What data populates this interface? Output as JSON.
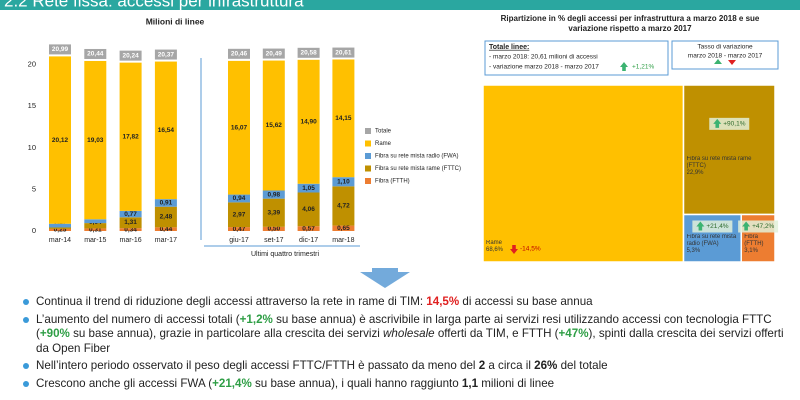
{
  "header": {
    "title": "2.2 Rete fissa: accessi per infrastruttura"
  },
  "chart_data": [
    {
      "type": "stacked_bar",
      "title": "Milioni di linee",
      "group_label": "Ultimi quattro trimestri",
      "categories": [
        "mar-14",
        "mar-15",
        "mar-16",
        "mar-17",
        "giu-17",
        "set-17",
        "dic-17",
        "mar-18"
      ],
      "ylim": [
        0,
        22
      ],
      "yticks": [
        0,
        5,
        10,
        15,
        20
      ],
      "grid": false,
      "series": [
        {
          "name": "Fibra (FTTH)",
          "color": "#ed7d31",
          "values": [
            0.25,
            0.31,
            0.34,
            0.44,
            0.47,
            0.5,
            0.57,
            0.65
          ],
          "value_labels": [
            "0,25",
            "0,31",
            "0,34",
            "0,44",
            "0,47",
            "0,50",
            "0,57",
            "0,65"
          ]
        },
        {
          "name": "Fibra su rete mista rame (FTTC)",
          "color": "#bf9000",
          "values": [
            0.17,
            0.64,
            1.31,
            2.48,
            2.97,
            3.39,
            4.06,
            4.72
          ],
          "value_labels": [
            "0,17",
            "0,64",
            "1,31",
            "2,48",
            "2,97",
            "3,39",
            "4,06",
            "4,72"
          ]
        },
        {
          "name": "Fibra su rete mista radio (FWA)",
          "color": "#5b9bd5",
          "values": [
            0.45,
            0.46,
            0.77,
            0.91,
            0.94,
            0.98,
            1.05,
            1.1
          ],
          "value_labels": [
            "0,45",
            "0,46",
            "0,77",
            "0,91",
            "0,94",
            "0,98",
            "1,05",
            "1,10"
          ]
        },
        {
          "name": "Rame",
          "color": "#ffc000",
          "values": [
            20.12,
            19.03,
            17.82,
            16.54,
            16.07,
            15.62,
            14.9,
            14.15
          ],
          "value_labels": [
            "20,12",
            "19,03",
            "17,82",
            "16,54",
            "16,07",
            "15,62",
            "14,90",
            "14,15"
          ]
        }
      ],
      "totals": {
        "name": "Totale",
        "color": "#a6a6a6",
        "values": [
          20.99,
          20.44,
          20.24,
          20.37,
          20.46,
          20.49,
          20.58,
          20.61
        ],
        "value_labels": [
          "20,99",
          "20,44",
          "20,24",
          "20,37",
          "20,46",
          "20,49",
          "20,58",
          "20,61"
        ]
      },
      "legend_order": [
        4,
        3,
        2,
        1,
        0
      ]
    },
    {
      "type": "treemap",
      "title": "Ripartizione in % degli accessi per infrastruttura a marzo 2018 e sue variazione rispetto a marzo 2017",
      "summary": {
        "title": "Totale linee:",
        "line1": "- marzo 2018: 20,61 milioni di accessi",
        "line2": "- variazione marzo 2018 - marzo 2017",
        "change": 1.21,
        "change_label": "+1,21%"
      },
      "legend_box": {
        "title": "Tasso di variazione",
        "subtitle": "marzo 2018 - marzo 2017"
      },
      "categories": [
        "Rame",
        "Fibra su rete mista rame (FTTC)",
        "Fibra su rete mista radio (FWA)",
        "Fibra (FTTH)"
      ],
      "values": [
        68.6,
        22.9,
        5.3,
        3.1
      ],
      "value_labels": [
        "68,6%",
        "22,9%",
        "5,3%",
        "3,1%"
      ],
      "changes": [
        -14.5,
        90.1,
        21.4,
        47.2
      ],
      "change_labels": [
        "-14,5%",
        "+90,1%",
        "+21,4%",
        "+47,2%"
      ],
      "colors": [
        "#ffc000",
        "#bf9000",
        "#5b9bd5",
        "#ed7d31"
      ]
    }
  ],
  "bullets": [
    [
      {
        "text": "Continua il trend di riduzione degli accessi attraverso la rete in rame di TIM: "
      },
      {
        "text": "14,5%",
        "bold": true,
        "color": "#e02020"
      },
      {
        "text": " di accessi su base annua"
      }
    ],
    [
      {
        "text": "L’aumento del numero di accessi totali ("
      },
      {
        "text": "+1,2%",
        "bold": true,
        "color": "#2e9e45"
      },
      {
        "text": " su base annua) è ascrivibile in larga parte ai servizi resi utilizzando accessi con tecnologia FTTC ("
      },
      {
        "text": "+90%",
        "bold": true,
        "color": "#2e9e45"
      },
      {
        "text": " su base annua), grazie in particolare alla crescita dei servizi "
      },
      {
        "text": "wholesale",
        "italic": true
      },
      {
        "text": " offerti da TIM, e FTTH ("
      },
      {
        "text": "+47%",
        "bold": true,
        "color": "#2e9e45"
      },
      {
        "text": "), spinti dalla crescita dei servizi offerti da Open Fiber"
      }
    ],
    [
      {
        "text": "Nell’intero periodo osservato il peso degli accessi FTTC/FTTH è passato da meno del "
      },
      {
        "text": "2",
        "bold": true
      },
      {
        "text": " a circa il "
      },
      {
        "text": "26%",
        "bold": true
      },
      {
        "text": " del totale"
      }
    ],
    [
      {
        "text": "Crescono anche gli accessi FWA ("
      },
      {
        "text": "+21,4%",
        "bold": true,
        "color": "#2e9e45"
      },
      {
        "text": " su base annua), i quali hanno raggiunto "
      },
      {
        "text": "1,1",
        "bold": true
      },
      {
        "text": " milioni di linee"
      }
    ]
  ]
}
